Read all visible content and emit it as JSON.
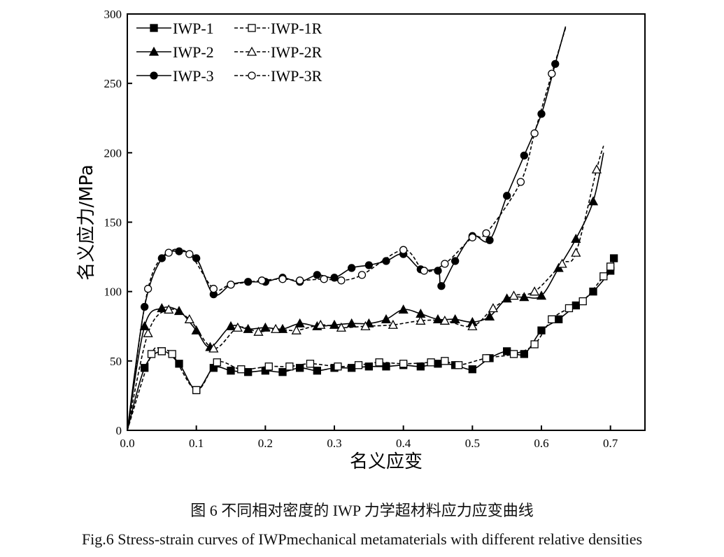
{
  "chart_data": {
    "type": "line",
    "title": "",
    "xlabel": "名义应变",
    "ylabel": "名义应力/MPa",
    "xlim": [
      0,
      0.75
    ],
    "ylim": [
      0,
      300
    ],
    "xticks": [
      "0.0",
      "0.1",
      "0.2",
      "0.3",
      "0.4",
      "0.5",
      "0.6",
      "0.7"
    ],
    "yticks": [
      "0",
      "50",
      "100",
      "150",
      "200",
      "250",
      "300"
    ],
    "grid": false,
    "legend_position": "top-left",
    "series": [
      {
        "name": "IWP-1",
        "style": "solid",
        "marker": "filled-square",
        "x": [
          0,
          0.025,
          0.05,
          0.075,
          0.1,
          0.125,
          0.15,
          0.175,
          0.2,
          0.225,
          0.25,
          0.275,
          0.3,
          0.325,
          0.35,
          0.375,
          0.4,
          0.425,
          0.45,
          0.475,
          0.5,
          0.525,
          0.55,
          0.575,
          0.6,
          0.625,
          0.65,
          0.675,
          0.7,
          0.705
        ],
        "y": [
          0,
          45,
          57,
          48,
          29,
          45,
          43,
          42,
          43,
          42,
          45,
          43,
          45,
          45,
          46,
          46,
          47,
          46,
          48,
          47,
          44,
          52,
          57,
          55,
          72,
          80,
          90,
          100,
          115,
          124
        ]
      },
      {
        "name": "IWP-1R",
        "style": "dashed",
        "marker": "open-square",
        "x": [
          0,
          0.035,
          0.05,
          0.065,
          0.1,
          0.13,
          0.165,
          0.205,
          0.235,
          0.265,
          0.305,
          0.335,
          0.365,
          0.4,
          0.44,
          0.46,
          0.48,
          0.52,
          0.56,
          0.59,
          0.615,
          0.64,
          0.66,
          0.69,
          0.7
        ],
        "y": [
          0,
          55,
          57,
          55,
          29,
          49,
          44,
          46,
          46,
          48,
          46,
          47,
          49,
          48,
          49,
          50,
          47,
          52,
          55,
          62,
          80,
          88,
          93,
          111,
          118
        ]
      },
      {
        "name": "IWP-2",
        "style": "solid",
        "marker": "filled-triangle",
        "x": [
          0,
          0.025,
          0.05,
          0.075,
          0.1,
          0.12,
          0.15,
          0.175,
          0.2,
          0.225,
          0.25,
          0.275,
          0.3,
          0.325,
          0.35,
          0.375,
          0.4,
          0.425,
          0.45,
          0.475,
          0.5,
          0.525,
          0.55,
          0.575,
          0.6,
          0.625,
          0.65,
          0.675,
          0.69
        ],
        "y": [
          0,
          75,
          88,
          86,
          72,
          60,
          75,
          73,
          74,
          73,
          77,
          75,
          76,
          77,
          77,
          80,
          87,
          84,
          80,
          80,
          78,
          82,
          95,
          96,
          97,
          117,
          138,
          165,
          200
        ]
      },
      {
        "name": "IWP-2R",
        "style": "dashed",
        "marker": "open-triangle",
        "x": [
          0,
          0.03,
          0.06,
          0.09,
          0.125,
          0.16,
          0.19,
          0.215,
          0.245,
          0.28,
          0.31,
          0.345,
          0.385,
          0.425,
          0.46,
          0.5,
          0.53,
          0.56,
          0.59,
          0.63,
          0.65,
          0.68,
          0.69
        ],
        "y": [
          0,
          70,
          87,
          80,
          59,
          74,
          71,
          73,
          72,
          76,
          74,
          75,
          76,
          79,
          79,
          75,
          88,
          97,
          100,
          120,
          128,
          188,
          205
        ]
      },
      {
        "name": "IWP-3",
        "style": "solid",
        "marker": "filled-circle",
        "x": [
          0,
          0.025,
          0.05,
          0.075,
          0.1,
          0.125,
          0.15,
          0.175,
          0.2,
          0.225,
          0.25,
          0.275,
          0.3,
          0.325,
          0.35,
          0.375,
          0.4,
          0.425,
          0.45,
          0.455,
          0.475,
          0.5,
          0.525,
          0.55,
          0.575,
          0.6,
          0.62,
          0.635
        ],
        "y": [
          0,
          89,
          124,
          129,
          124,
          98,
          105,
          107,
          107,
          110,
          107,
          112,
          110,
          117,
          119,
          122,
          127,
          116,
          115,
          104,
          122,
          140,
          137,
          169,
          198,
          228,
          264,
          291
        ]
      },
      {
        "name": "IWP-3R",
        "style": "dashed",
        "marker": "open-circle",
        "x": [
          0,
          0.03,
          0.06,
          0.09,
          0.125,
          0.15,
          0.195,
          0.225,
          0.25,
          0.285,
          0.31,
          0.34,
          0.4,
          0.43,
          0.46,
          0.5,
          0.52,
          0.57,
          0.59,
          0.615,
          0.635
        ],
        "y": [
          0,
          102,
          128,
          127,
          102,
          105,
          108,
          109,
          108,
          109,
          108,
          112,
          130,
          115,
          120,
          139,
          142,
          179,
          214,
          257,
          290
        ]
      }
    ]
  },
  "caption": {
    "cn": "图 6 不同相对密度的 IWP 力学超材料应力应变曲线",
    "en": "Fig.6 Stress-strain curves of IWPmechanical metamaterials with different relative densities"
  }
}
